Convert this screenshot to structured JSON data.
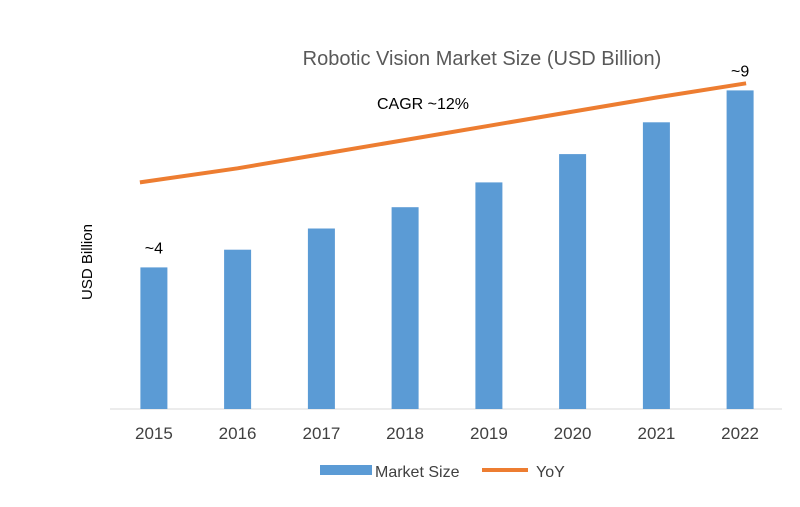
{
  "chart_data": {
    "type": "bar",
    "title": "Robotic Vision Market Size (USD Billion)",
    "xlabel": "",
    "ylabel": "USD Billion",
    "categories": [
      "2015",
      "2016",
      "2017",
      "2018",
      "2019",
      "2020",
      "2021",
      "2022"
    ],
    "series": [
      {
        "name": "Market Size",
        "type": "bar",
        "color": "#5B9BD5",
        "values": [
          4.0,
          4.5,
          5.1,
          5.7,
          6.4,
          7.2,
          8.1,
          9.0
        ]
      },
      {
        "name": "YoY",
        "type": "line",
        "color": "#ED7D31",
        "values": [
          6.4,
          6.8,
          7.2,
          7.6,
          8.0,
          8.4,
          8.8,
          9.2
        ]
      }
    ],
    "data_labels": [
      {
        "category": "2015",
        "text": "~4"
      },
      {
        "category": "2022",
        "text": "~9"
      }
    ],
    "annotation": "CAGR ~12%",
    "ylim": [
      0,
      10
    ],
    "grid": false,
    "legend": "bottom"
  }
}
